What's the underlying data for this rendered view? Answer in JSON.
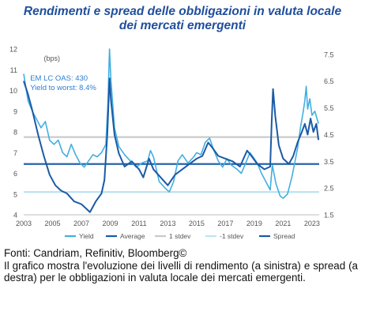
{
  "title_line1": "Rendimenti e spread delle obbligazioni in valuta locale",
  "title_line2": "dei mercati emergenti",
  "source": "Fonti: Candriam, Refinitiv, Bloomberg©",
  "description": "Il grafico mostra l'evoluzione dei livelli di rendimento (a sinistra) e spread (a destra) per le obbligazioni in valuta locale dei mercati emergenti.",
  "colors": {
    "title": "#1f4e9c",
    "yield": "#41afe0",
    "spread": "#1b5aa6",
    "average": "#1b5aa6",
    "stdev_plus": "#c8c8c8",
    "stdev_minus": "#bde3f4",
    "annotation": "#2a7fd4",
    "axis_text": "#555555"
  },
  "chart_data": {
    "type": "line",
    "x_ticks": [
      "2003",
      "2005",
      "2007",
      "2009",
      "2011",
      "2013",
      "2015",
      "2017",
      "2019",
      "2021",
      "2023"
    ],
    "xlim": [
      2003.0,
      2023.5
    ],
    "y_left": {
      "ticks": [
        4,
        5,
        6,
        7,
        8,
        9,
        10,
        11,
        12
      ],
      "lim": [
        4,
        12
      ]
    },
    "y_right": {
      "ticks": [
        1.5,
        2.5,
        3.5,
        4.5,
        5.5,
        6.5,
        7.5
      ],
      "lim": [
        1.5,
        7.7
      ]
    },
    "unit_label": "(bps)",
    "annotation_lines": [
      "EM LC OAS: 430",
      "Yield to worst: 8.4%"
    ],
    "legend": [
      "Yield",
      "Average",
      "1 stdev",
      "-1 stdev",
      "Spread"
    ],
    "average": 6.45,
    "plus_1_stdev": 7.75,
    "minus_1_stdev": 5.1,
    "series": [
      {
        "name": "Yield",
        "points": [
          [
            2003.0,
            10.8
          ],
          [
            2003.3,
            9.5
          ],
          [
            2003.6,
            9.0
          ],
          [
            2003.9,
            8.6
          ],
          [
            2004.2,
            8.2
          ],
          [
            2004.5,
            8.5
          ],
          [
            2004.8,
            7.6
          ],
          [
            2005.1,
            7.4
          ],
          [
            2005.4,
            7.6
          ],
          [
            2005.7,
            7.0
          ],
          [
            2006.0,
            6.8
          ],
          [
            2006.3,
            7.4
          ],
          [
            2006.6,
            6.9
          ],
          [
            2006.9,
            6.5
          ],
          [
            2007.2,
            6.3
          ],
          [
            2007.5,
            6.6
          ],
          [
            2007.8,
            6.9
          ],
          [
            2008.1,
            6.8
          ],
          [
            2008.4,
            7.0
          ],
          [
            2008.7,
            7.4
          ],
          [
            2008.85,
            9.5
          ],
          [
            2008.95,
            12.0
          ],
          [
            2009.05,
            10.5
          ],
          [
            2009.3,
            8.2
          ],
          [
            2009.6,
            7.3
          ],
          [
            2010.0,
            6.9
          ],
          [
            2010.4,
            6.6
          ],
          [
            2010.8,
            6.3
          ],
          [
            2011.2,
            6.5
          ],
          [
            2011.6,
            6.6
          ],
          [
            2011.8,
            7.1
          ],
          [
            2012.0,
            6.8
          ],
          [
            2012.4,
            5.6
          ],
          [
            2012.8,
            5.3
          ],
          [
            2013.1,
            5.1
          ],
          [
            2013.4,
            5.6
          ],
          [
            2013.7,
            6.6
          ],
          [
            2014.0,
            6.9
          ],
          [
            2014.4,
            6.5
          ],
          [
            2014.8,
            6.8
          ],
          [
            2015.0,
            7.0
          ],
          [
            2015.3,
            6.9
          ],
          [
            2015.6,
            7.5
          ],
          [
            2015.9,
            7.7
          ],
          [
            2016.2,
            7.1
          ],
          [
            2016.5,
            6.6
          ],
          [
            2016.8,
            6.3
          ],
          [
            2017.1,
            6.7
          ],
          [
            2017.4,
            6.4
          ],
          [
            2017.8,
            6.2
          ],
          [
            2018.1,
            6.0
          ],
          [
            2018.4,
            6.5
          ],
          [
            2018.7,
            7.0
          ],
          [
            2018.9,
            6.8
          ],
          [
            2019.2,
            6.5
          ],
          [
            2019.5,
            6.0
          ],
          [
            2019.8,
            5.6
          ],
          [
            2020.1,
            5.2
          ],
          [
            2020.25,
            6.4
          ],
          [
            2020.5,
            5.5
          ],
          [
            2020.8,
            4.9
          ],
          [
            2021.0,
            4.8
          ],
          [
            2021.3,
            5.0
          ],
          [
            2021.6,
            5.8
          ],
          [
            2021.8,
            6.5
          ],
          [
            2022.0,
            7.2
          ],
          [
            2022.2,
            8.2
          ],
          [
            2022.4,
            9.0
          ],
          [
            2022.5,
            9.5
          ],
          [
            2022.6,
            10.2
          ],
          [
            2022.7,
            9.1
          ],
          [
            2022.85,
            9.6
          ],
          [
            2023.0,
            8.8
          ],
          [
            2023.2,
            9.0
          ],
          [
            2023.45,
            8.4
          ]
        ]
      },
      {
        "name": "Spread",
        "points": [
          [
            2003.0,
            6.5
          ],
          [
            2003.3,
            6.0
          ],
          [
            2003.6,
            5.4
          ],
          [
            2004.0,
            4.5
          ],
          [
            2004.4,
            3.7
          ],
          [
            2004.8,
            3.0
          ],
          [
            2005.2,
            2.6
          ],
          [
            2005.6,
            2.4
          ],
          [
            2006.0,
            2.3
          ],
          [
            2006.5,
            2.0
          ],
          [
            2007.0,
            1.9
          ],
          [
            2007.3,
            1.75
          ],
          [
            2007.6,
            1.6
          ],
          [
            2008.0,
            2.0
          ],
          [
            2008.4,
            2.3
          ],
          [
            2008.6,
            2.8
          ],
          [
            2008.8,
            4.5
          ],
          [
            2008.95,
            6.6
          ],
          [
            2009.05,
            5.8
          ],
          [
            2009.3,
            4.5
          ],
          [
            2009.6,
            3.8
          ],
          [
            2010.0,
            3.3
          ],
          [
            2010.5,
            3.5
          ],
          [
            2011.0,
            3.2
          ],
          [
            2011.3,
            2.9
          ],
          [
            2011.7,
            3.6
          ],
          [
            2012.0,
            3.2
          ],
          [
            2012.5,
            2.9
          ],
          [
            2013.0,
            2.6
          ],
          [
            2013.5,
            3.0
          ],
          [
            2014.0,
            3.2
          ],
          [
            2014.5,
            3.4
          ],
          [
            2015.0,
            3.6
          ],
          [
            2015.4,
            3.7
          ],
          [
            2015.8,
            4.2
          ],
          [
            2016.1,
            4.0
          ],
          [
            2016.5,
            3.7
          ],
          [
            2017.0,
            3.6
          ],
          [
            2017.5,
            3.5
          ],
          [
            2018.0,
            3.3
          ],
          [
            2018.5,
            3.9
          ],
          [
            2018.8,
            3.7
          ],
          [
            2019.2,
            3.4
          ],
          [
            2019.7,
            3.2
          ],
          [
            2020.1,
            3.3
          ],
          [
            2020.2,
            4.9
          ],
          [
            2020.3,
            6.2
          ],
          [
            2020.45,
            5.2
          ],
          [
            2020.7,
            4.1
          ],
          [
            2021.0,
            3.6
          ],
          [
            2021.4,
            3.4
          ],
          [
            2021.7,
            3.7
          ],
          [
            2022.0,
            4.2
          ],
          [
            2022.3,
            4.6
          ],
          [
            2022.5,
            4.9
          ],
          [
            2022.7,
            4.5
          ],
          [
            2022.9,
            5.1
          ],
          [
            2023.1,
            4.6
          ],
          [
            2023.3,
            4.9
          ],
          [
            2023.45,
            4.3
          ]
        ]
      }
    ]
  }
}
